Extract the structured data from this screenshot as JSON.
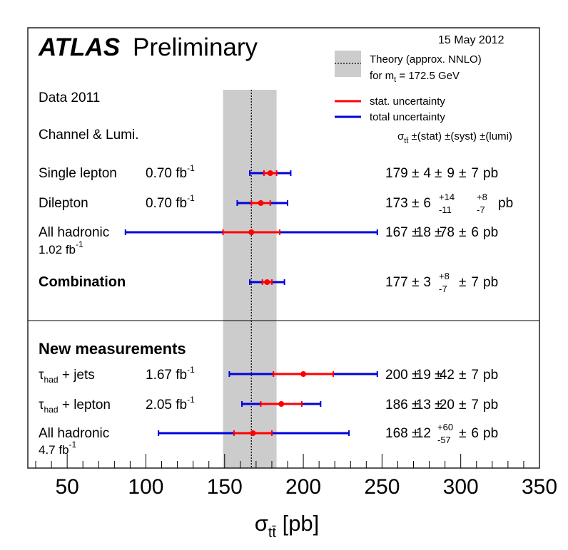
{
  "header": {
    "brand": "ATLAS",
    "status": "Preliminary",
    "date": "15 May 2012"
  },
  "legend": {
    "theory_line1": "Theory (approx. NNLO)",
    "theory_line2_prefix": "for m",
    "theory_line2_sub": "t",
    "theory_line2_suffix": " = 172.5 GeV",
    "stat": "stat. uncertainty",
    "total": "total uncertainty"
  },
  "labels": {
    "data_period": "Data 2011",
    "channel_lumi": "Channel & Lumi.",
    "column_header": "σ_tt̄ ±(stat) ±(syst) ±(lumi)",
    "new_measurements": "New measurements"
  },
  "colors": {
    "stat": "#ff0000",
    "total": "#0000dd",
    "theory_band": "#cccccc",
    "point": "#ff0000"
  },
  "chart_data": {
    "type": "scatter",
    "title": "ATLAS Preliminary",
    "xlabel": "σ_tt̄ [pb]",
    "xlim": [
      25,
      350
    ],
    "xticks": [
      50,
      100,
      150,
      200,
      250,
      300,
      350
    ],
    "theory": {
      "label": "Theory (approx. NNLO)",
      "center": 167,
      "low": 149,
      "high": 183
    },
    "groups": [
      {
        "heading": "",
        "measurements": [
          {
            "channel": "Single lepton",
            "lumi": "0.70",
            "value": 179,
            "stat": "4",
            "syst": "9",
            "lumi_unc": "7",
            "stat_range": [
              175,
              183
            ],
            "total_range": [
              166,
              192
            ]
          },
          {
            "channel": "Dilepton",
            "lumi": "0.70",
            "value": 173,
            "stat": "6",
            "syst_up": "+14",
            "syst_down": "-11",
            "lumi_up": "+8",
            "lumi_down": "-7",
            "stat_range": [
              167,
              179
            ],
            "total_range": [
              158,
              190
            ]
          },
          {
            "channel": "All hadronic",
            "lumi": "1.02",
            "value": 167,
            "stat": "18",
            "syst": "78",
            "lumi_unc": "6",
            "stat_range": [
              149,
              185
            ],
            "total_range": [
              87,
              247
            ]
          },
          {
            "channel": "Combination",
            "lumi": "",
            "value": 177,
            "stat": "3",
            "syst_up": "+8",
            "syst_down": "-7",
            "lumi_unc": "7",
            "stat_range": [
              174,
              180
            ],
            "total_range": [
              166,
              188
            ]
          }
        ]
      },
      {
        "heading": "New measurements",
        "measurements": [
          {
            "channel": "τ_had + jets",
            "lumi": "1.67",
            "value": 200,
            "stat": "19",
            "syst": "42",
            "lumi_unc": "7",
            "stat_range": [
              181,
              219
            ],
            "total_range": [
              153,
              247
            ]
          },
          {
            "channel": "τ_had + lepton",
            "lumi": "2.05",
            "value": 186,
            "stat": "13",
            "syst": "20",
            "lumi_unc": "7",
            "stat_range": [
              173,
              199
            ],
            "total_range": [
              161,
              211
            ]
          },
          {
            "channel": "All hadronic",
            "lumi": "4.7",
            "value": 168,
            "stat": "12",
            "syst_up": "+60",
            "syst_down": "-57",
            "lumi_unc": "6",
            "stat_range": [
              156,
              180
            ],
            "total_range": [
              108,
              229
            ]
          }
        ]
      }
    ]
  }
}
